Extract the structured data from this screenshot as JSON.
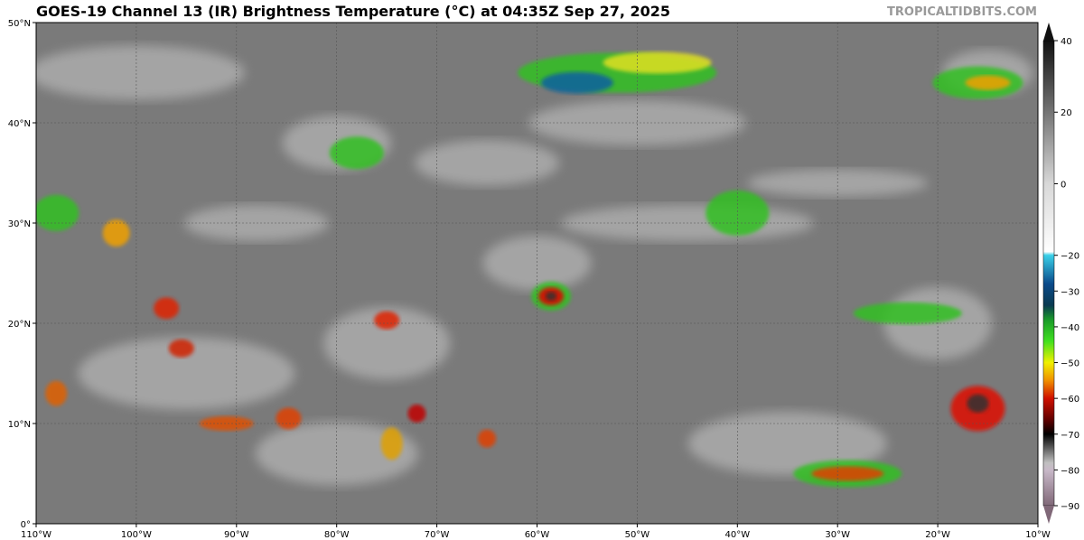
{
  "title": "GOES-19 Channel 13 (IR) Brightness Temperature (°C) at 04:35Z Sep 27, 2025",
  "brand": "TROPICALTIDBITS.COM",
  "map": {
    "lon_range": [
      -110,
      -10
    ],
    "lat_range": [
      0,
      50
    ],
    "lon_ticks": [
      {
        "v": -110,
        "label": "110°W"
      },
      {
        "v": -100,
        "label": "100°W"
      },
      {
        "v": -90,
        "label": "90°W"
      },
      {
        "v": -80,
        "label": "80°W"
      },
      {
        "v": -70,
        "label": "70°W"
      },
      {
        "v": -60,
        "label": "60°W"
      },
      {
        "v": -50,
        "label": "50°W"
      },
      {
        "v": -40,
        "label": "40°W"
      },
      {
        "v": -30,
        "label": "30°W"
      },
      {
        "v": -20,
        "label": "20°W"
      },
      {
        "v": -10,
        "label": "10°W"
      }
    ],
    "lat_ticks": [
      {
        "v": 0,
        "label": "0°"
      },
      {
        "v": 10,
        "label": "10°N"
      },
      {
        "v": 20,
        "label": "20°N"
      },
      {
        "v": 30,
        "label": "30°N"
      },
      {
        "v": 40,
        "label": "40°N"
      },
      {
        "v": 50,
        "label": "50°N"
      }
    ],
    "background_color": "#7a7a7a"
  },
  "colorbar": {
    "range": [
      -90,
      40
    ],
    "ticks": [
      {
        "v": 40,
        "label": "40"
      },
      {
        "v": 20,
        "label": "20"
      },
      {
        "v": 0,
        "label": "0"
      },
      {
        "v": -20,
        "label": "−20"
      },
      {
        "v": -30,
        "label": "−30"
      },
      {
        "v": -40,
        "label": "−40"
      },
      {
        "v": -50,
        "label": "−50"
      },
      {
        "v": -60,
        "label": "−60"
      },
      {
        "v": -70,
        "label": "−70"
      },
      {
        "v": -80,
        "label": "−80"
      },
      {
        "v": -90,
        "label": "−90"
      }
    ],
    "stops": [
      {
        "v": 40,
        "c": "#111111"
      },
      {
        "v": 0,
        "c": "#d8d8d8"
      },
      {
        "v": -19,
        "c": "#ffffff"
      },
      {
        "v": -20,
        "c": "#3ad0e8"
      },
      {
        "v": -28,
        "c": "#0a4a8a"
      },
      {
        "v": -34,
        "c": "#0a3a50"
      },
      {
        "v": -38,
        "c": "#1a9a2a"
      },
      {
        "v": -44,
        "c": "#40e020"
      },
      {
        "v": -50,
        "c": "#f0f000"
      },
      {
        "v": -55,
        "c": "#f09000"
      },
      {
        "v": -60,
        "c": "#d01000"
      },
      {
        "v": -66,
        "c": "#600000"
      },
      {
        "v": -70,
        "c": "#000000"
      },
      {
        "v": -78,
        "c": "#c0c0c0"
      },
      {
        "v": -80,
        "c": "#c8b8c8"
      },
      {
        "v": -90,
        "c": "#806878"
      }
    ]
  }
}
